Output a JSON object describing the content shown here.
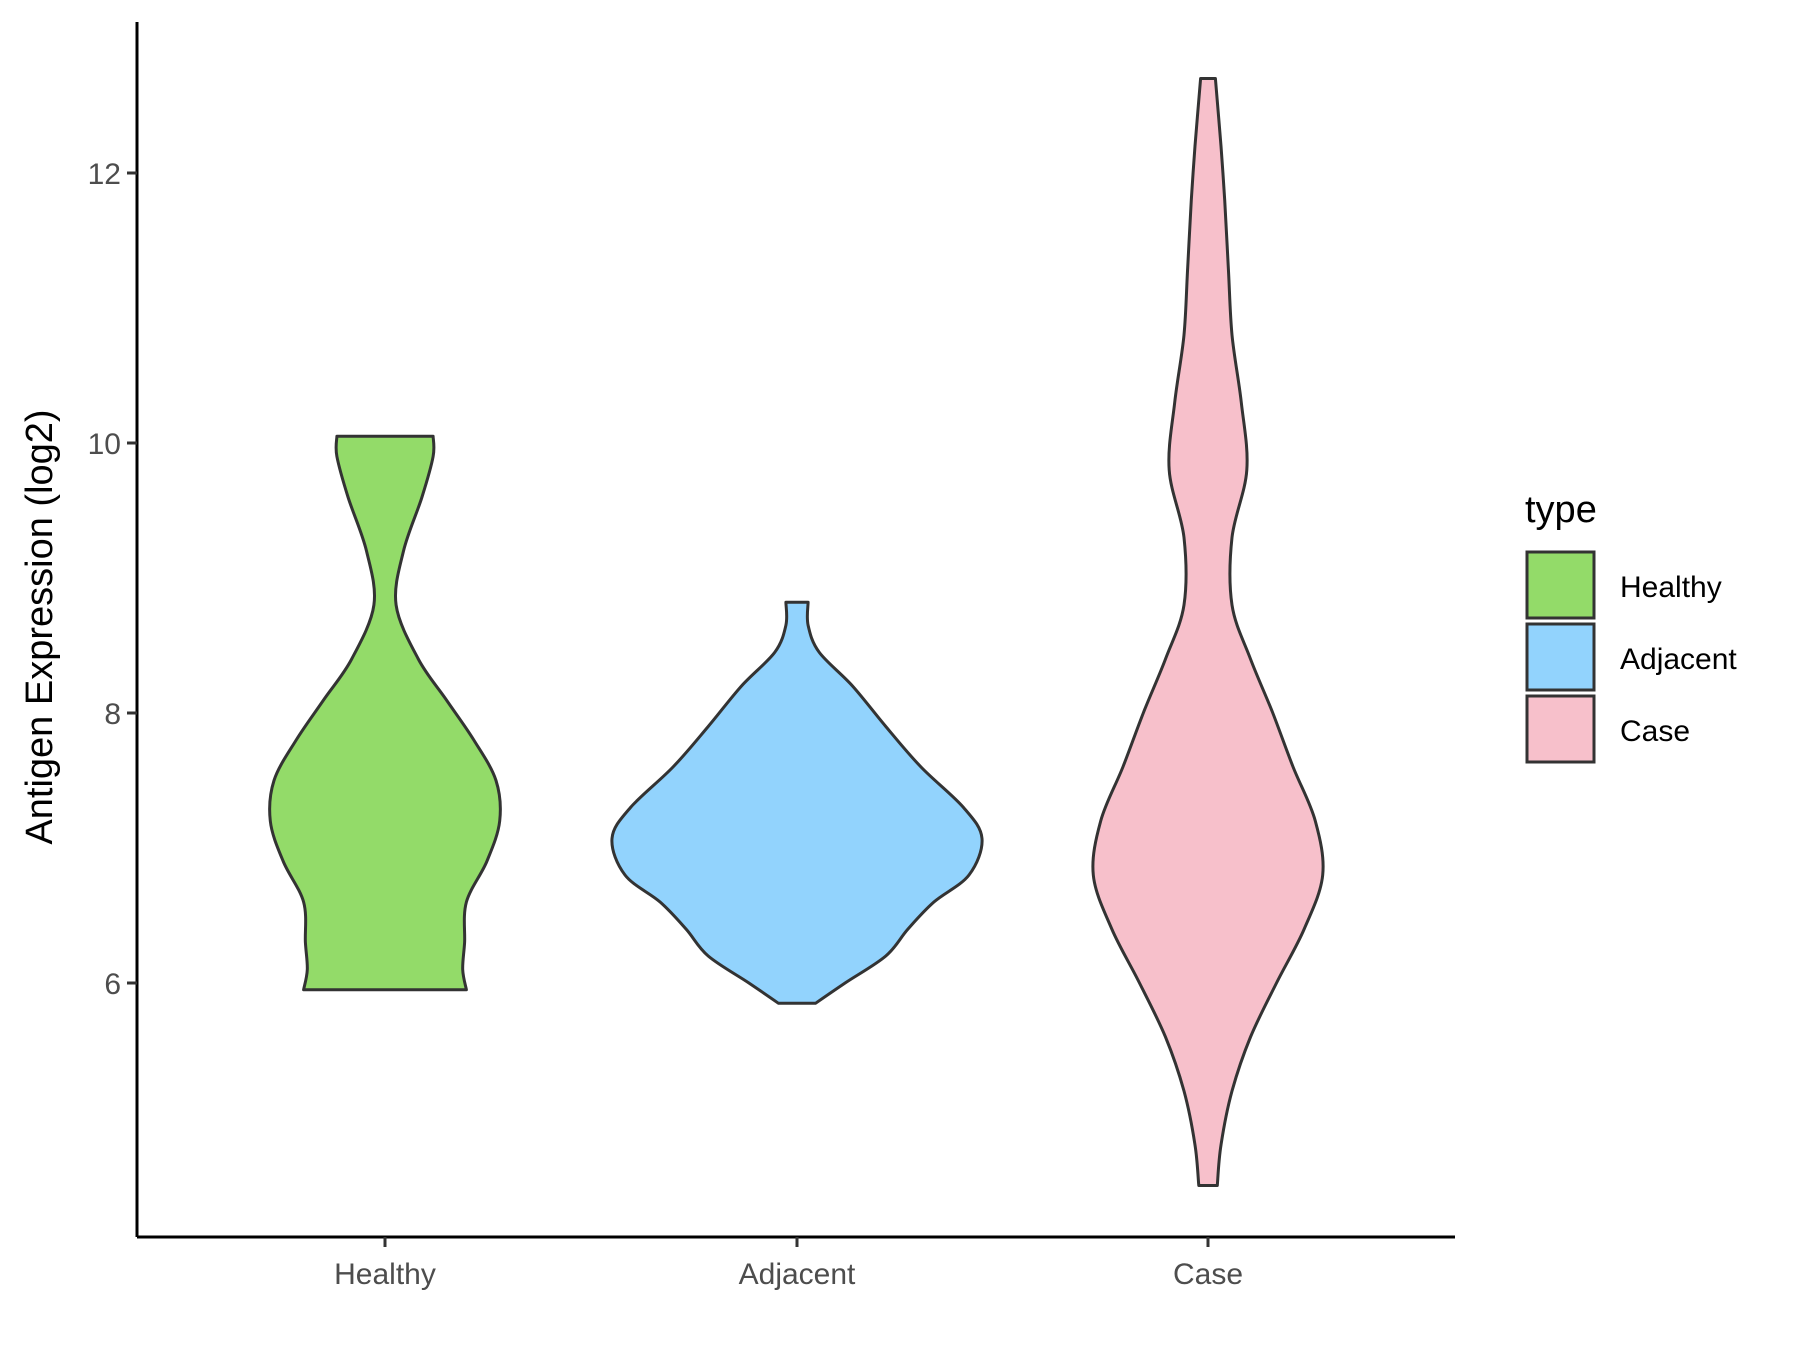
{
  "chart_data": {
    "type": "violin",
    "title": "",
    "xlabel": "",
    "ylabel": "Antigen Expression (log2)",
    "categories": [
      "Healthy",
      "Adjacent",
      "Case"
    ],
    "ylim": [
      4.0,
      13.2
    ],
    "yticks": [
      6,
      8,
      10,
      12
    ],
    "grid": false,
    "legend": {
      "title": "type",
      "position": "right",
      "entries": [
        "Healthy",
        "Adjacent",
        "Case"
      ]
    },
    "colors": {
      "Healthy": "#93db69",
      "Adjacent": "#92d3fd",
      "Case": "#f7c0cb",
      "outline": "#333333"
    },
    "series": [
      {
        "category": "Healthy",
        "min": 5.95,
        "max": 10.05,
        "density": [
          [
            5.95,
            0.44
          ],
          [
            6.1,
            0.42
          ],
          [
            6.3,
            0.43
          ],
          [
            6.6,
            0.44
          ],
          [
            6.9,
            0.55
          ],
          [
            7.2,
            0.62
          ],
          [
            7.5,
            0.6
          ],
          [
            7.8,
            0.48
          ],
          [
            8.1,
            0.33
          ],
          [
            8.4,
            0.18
          ],
          [
            8.8,
            0.06
          ],
          [
            9.2,
            0.1
          ],
          [
            9.6,
            0.2
          ],
          [
            9.9,
            0.26
          ],
          [
            10.05,
            0.26
          ]
        ]
      },
      {
        "category": "Adjacent",
        "min": 5.85,
        "max": 8.82,
        "density": [
          [
            5.85,
            0.1
          ],
          [
            6.0,
            0.26
          ],
          [
            6.2,
            0.48
          ],
          [
            6.4,
            0.6
          ],
          [
            6.6,
            0.74
          ],
          [
            6.8,
            0.93
          ],
          [
            7.07,
            1.0
          ],
          [
            7.3,
            0.9
          ],
          [
            7.6,
            0.67
          ],
          [
            7.9,
            0.48
          ],
          [
            8.2,
            0.3
          ],
          [
            8.45,
            0.12
          ],
          [
            8.65,
            0.06
          ],
          [
            8.82,
            0.06
          ]
        ]
      },
      {
        "category": "Case",
        "min": 4.5,
        "max": 12.7,
        "density": [
          [
            4.5,
            0.05
          ],
          [
            4.8,
            0.07
          ],
          [
            5.2,
            0.13
          ],
          [
            5.6,
            0.23
          ],
          [
            6.0,
            0.37
          ],
          [
            6.4,
            0.52
          ],
          [
            6.8,
            0.62
          ],
          [
            7.2,
            0.58
          ],
          [
            7.6,
            0.46
          ],
          [
            8.0,
            0.35
          ],
          [
            8.4,
            0.23
          ],
          [
            8.8,
            0.13
          ],
          [
            9.3,
            0.13
          ],
          [
            9.8,
            0.21
          ],
          [
            10.3,
            0.18
          ],
          [
            10.8,
            0.13
          ],
          [
            11.3,
            0.11
          ],
          [
            11.8,
            0.09
          ],
          [
            12.2,
            0.07
          ],
          [
            12.7,
            0.04
          ]
        ]
      }
    ]
  }
}
